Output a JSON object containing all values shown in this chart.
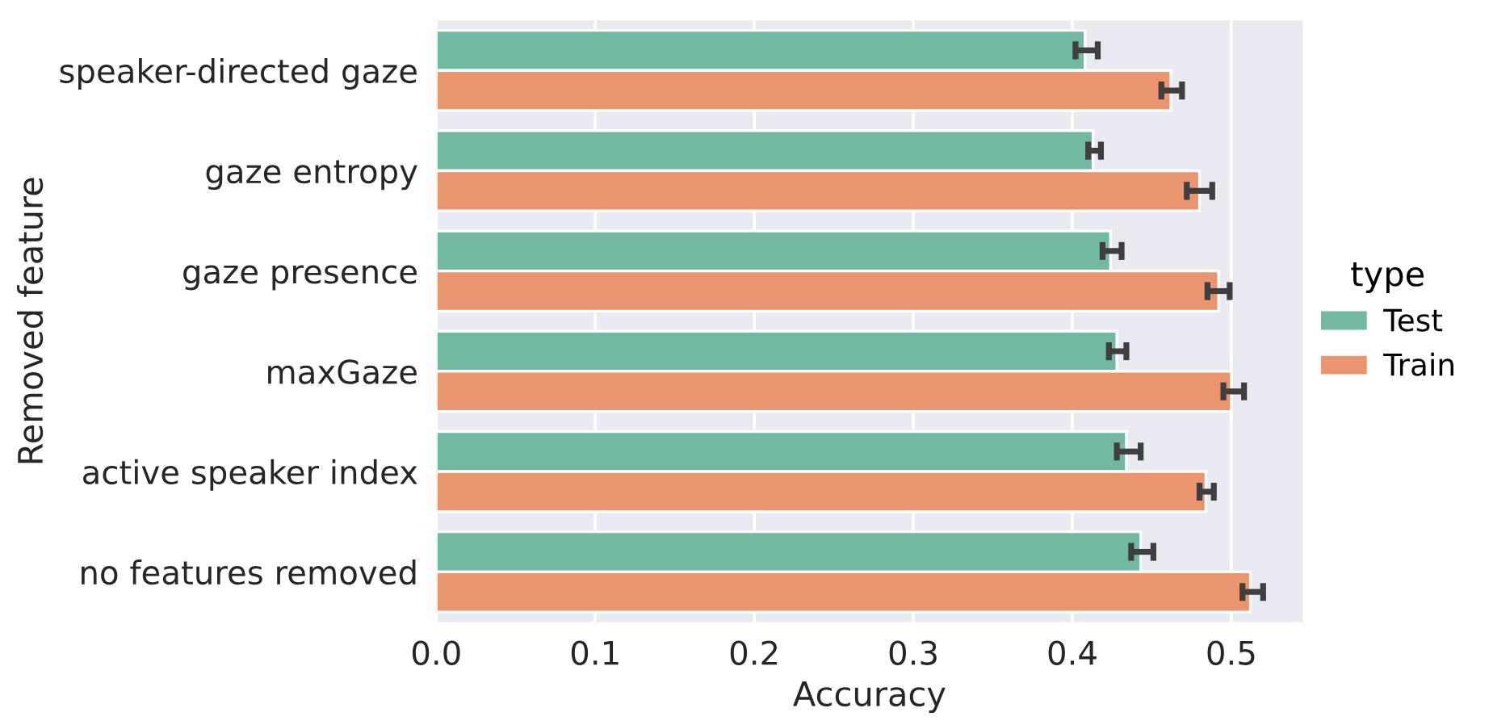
{
  "chart_data": {
    "type": "bar",
    "orientation": "horizontal",
    "xlabel": "Accuracy",
    "ylabel": "Removed feature",
    "legend_title": "type",
    "legend": "right",
    "categories": [
      "speaker-directed gaze",
      "gaze entropy",
      "gaze presence",
      "maxGaze",
      "active speaker index",
      "no features removed"
    ],
    "series": [
      {
        "name": "Test",
        "color": "#73b8a0",
        "values": [
          0.408,
          0.413,
          0.424,
          0.428,
          0.434,
          0.443
        ],
        "errors": [
          [
            0.402,
            0.416
          ],
          [
            0.41,
            0.418
          ],
          [
            0.419,
            0.431
          ],
          [
            0.423,
            0.434
          ],
          [
            0.428,
            0.443
          ],
          [
            0.437,
            0.451
          ]
        ]
      },
      {
        "name": "Train",
        "color": "#e9956f",
        "values": [
          0.462,
          0.48,
          0.492,
          0.5,
          0.484,
          0.512
        ],
        "errors": [
          [
            0.456,
            0.469
          ],
          [
            0.472,
            0.488
          ],
          [
            0.485,
            0.499
          ],
          [
            0.495,
            0.508
          ],
          [
            0.48,
            0.489
          ],
          [
            0.507,
            0.52
          ]
        ]
      }
    ],
    "xlim": [
      0,
      0.545
    ],
    "xticks": [
      {
        "value": 0,
        "label": "0.0"
      },
      0.1,
      0.2,
      0.3,
      0.4,
      0.5
    ],
    "grid": true
  }
}
